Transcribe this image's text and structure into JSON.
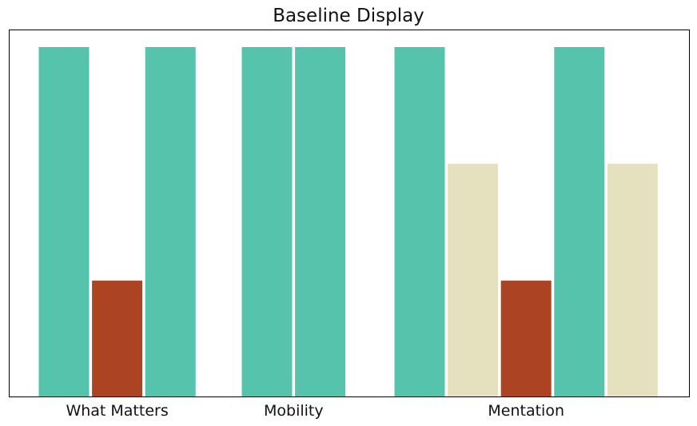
{
  "chart_data": {
    "type": "bar",
    "title": "Baseline Display",
    "xlabel": "",
    "ylabel": "",
    "ylim": [
      0,
      3
    ],
    "y_axis_visible": false,
    "grid": false,
    "legend": "none",
    "palette": {
      "teal": "#56c4ad",
      "rust": "#ac4424",
      "beige": "#e5e0bd"
    },
    "groups": [
      {
        "label": "What Matters",
        "bars": [
          {
            "value": 3,
            "color": "#56c4ad"
          },
          {
            "value": 1,
            "color": "#ac4424"
          },
          {
            "value": 3,
            "color": "#56c4ad"
          }
        ]
      },
      {
        "label": "Mobility",
        "bars": [
          {
            "value": 3,
            "color": "#56c4ad"
          },
          {
            "value": 3,
            "color": "#56c4ad"
          }
        ]
      },
      {
        "label": "Mentation",
        "bars": [
          {
            "value": 3,
            "color": "#56c4ad"
          },
          {
            "value": 2,
            "color": "#e5e0bd"
          },
          {
            "value": 1,
            "color": "#ac4424"
          },
          {
            "value": 3,
            "color": "#56c4ad"
          },
          {
            "value": 2,
            "color": "#e5e0bd"
          }
        ]
      }
    ]
  }
}
